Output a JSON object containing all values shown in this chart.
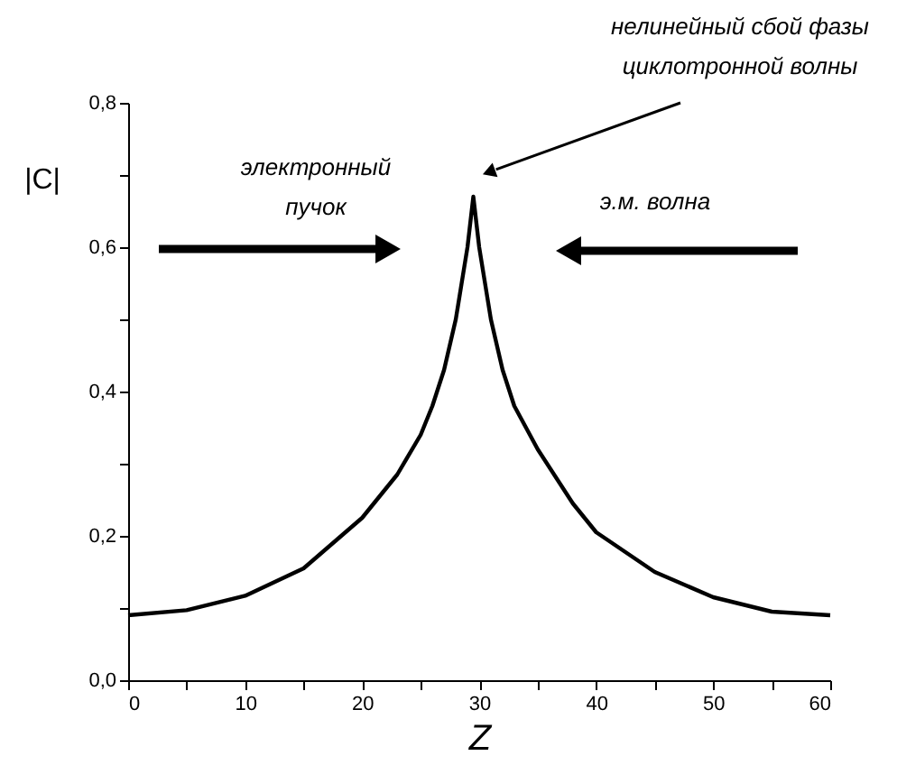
{
  "chart_data": {
    "type": "line",
    "xlabel": "Z",
    "ylabel": "|C|",
    "annotations": [
      "нелинейный сбой фазы\nциклотронной волны",
      "электронный\nпучок",
      "э.м. волна"
    ],
    "x": [
      0,
      5,
      10,
      15,
      20,
      23,
      25,
      26,
      27,
      28,
      28.5,
      29,
      29.5,
      30,
      30.5,
      31,
      32,
      33,
      35,
      38,
      40,
      45,
      50,
      55,
      60
    ],
    "series": [
      {
        "color": "#000000",
        "values": [
          0.09,
          0.097,
          0.117,
          0.155,
          0.225,
          0.285,
          0.34,
          0.38,
          0.43,
          0.5,
          0.55,
          0.6,
          0.67,
          0.6,
          0.55,
          0.5,
          0.43,
          0.38,
          0.32,
          0.245,
          0.205,
          0.15,
          0.115,
          0.095,
          0.09
        ]
      }
    ],
    "xlim": [
      0,
      60
    ],
    "ylim": [
      0,
      0.8
    ],
    "xticks": [
      0,
      {
        "value": 5,
        "label": null
      },
      10,
      {
        "value": 15,
        "label": null
      },
      20,
      {
        "value": 25,
        "label": null
      },
      30,
      {
        "value": 35,
        "label": null
      },
      40,
      {
        "value": 45,
        "label": null
      },
      50,
      {
        "value": 55,
        "label": null
      },
      60
    ],
    "yticks": [
      {
        "value": 0,
        "label": "0,0"
      },
      {
        "value": 0.1,
        "label": null
      },
      {
        "value": 0.2,
        "label": "0,2"
      },
      {
        "value": 0.3,
        "label": null
      },
      {
        "value": 0.4,
        "label": "0,4"
      },
      {
        "value": 0.5,
        "label": null
      },
      {
        "value": 0.6,
        "label": "0,6"
      },
      {
        "value": 0.7,
        "label": null
      },
      {
        "value": 0.8,
        "label": "0,8"
      }
    ],
    "grid": false,
    "marker": "none",
    "line_style": "solid"
  }
}
